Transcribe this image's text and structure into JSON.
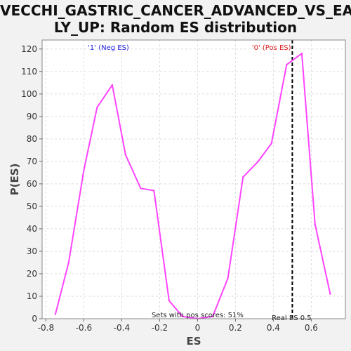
{
  "title_lines": [
    "VECCHI_GASTRIC_CANCER_ADVANCED_VS_EAR",
    "LY_UP: Random ES distribution"
  ],
  "chart_data": {
    "type": "line",
    "title": "VECCHI_GASTRIC_CANCER_ADVANCED_VS_EARLY_UP: Random ES distribution",
    "xlabel": "ES",
    "ylabel": "P(ES)",
    "xlim": [
      -0.82,
      0.78
    ],
    "ylim": [
      0,
      124
    ],
    "xticks": [
      -0.8,
      -0.6,
      -0.4,
      -0.2,
      0.0,
      0.2,
      0.4,
      0.6
    ],
    "xtick_labels": [
      "-0.8",
      "-0.6",
      "-0.4",
      "-0.2",
      "0",
      "0.2",
      "0.4",
      "0.6"
    ],
    "yticks": [
      0,
      10,
      20,
      30,
      40,
      50,
      60,
      70,
      80,
      90,
      100,
      110,
      120
    ],
    "grid": true,
    "series": [
      {
        "color": "#ff44ff",
        "x": [
          -0.75,
          -0.68,
          -0.6,
          -0.53,
          -0.45,
          -0.38,
          -0.3,
          -0.23,
          -0.15,
          -0.08,
          0.0,
          0.08,
          0.16,
          0.24,
          0.32,
          0.39,
          0.47,
          0.55,
          0.62,
          0.7
        ],
        "y": [
          2,
          25,
          66,
          94,
          104,
          73,
          58,
          57,
          8,
          1,
          0,
          1,
          18,
          63,
          70,
          78,
          113,
          118,
          42,
          11
        ]
      }
    ],
    "reference_line": {
      "x": 0.5,
      "style": "dashed",
      "color": "#000000",
      "label": "Real ES 0.5"
    },
    "annotations": {
      "neg_label": {
        "text": "'1' (Neg ES)",
        "color": "#2222dd"
      },
      "pos_label": {
        "text": "'0' (Pos ES)",
        "color": "#dd2222"
      },
      "pos_scores": {
        "text": "Sets with pos scores: 51%",
        "color": "#222222"
      }
    }
  }
}
